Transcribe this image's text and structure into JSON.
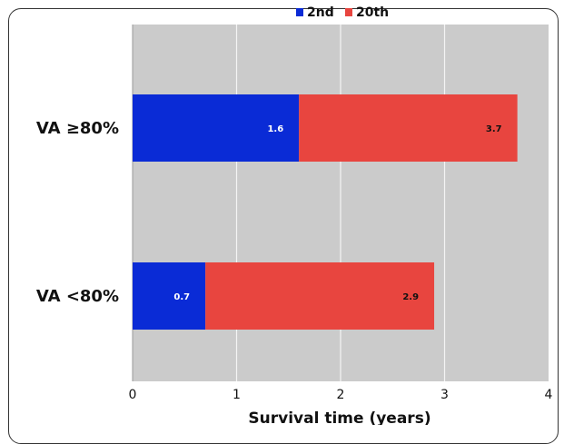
{
  "chart_data": {
    "type": "bar",
    "orientation": "horizontal",
    "stacked": true,
    "categories": [
      "VA ≥80%",
      "VA <80%"
    ],
    "series": [
      {
        "name": "2nd",
        "color": "#0a2bd6",
        "values": [
          1.6,
          0.7
        ],
        "labels": [
          "1.6",
          "0.7"
        ],
        "label_color": "#ffffff"
      },
      {
        "name": "20th",
        "color": "#e8453f",
        "values": [
          2.1,
          2.2
        ],
        "labels": [
          "3.7",
          "2.9"
        ],
        "label_color": "#111111"
      }
    ],
    "xlabel": "Survival time (years)",
    "xlim": [
      0,
      4
    ],
    "xticks": [
      "0",
      "1",
      "2",
      "3",
      "4"
    ],
    "grid": true,
    "plot_background": "#cbcbcb",
    "legend_position": "top-center"
  }
}
